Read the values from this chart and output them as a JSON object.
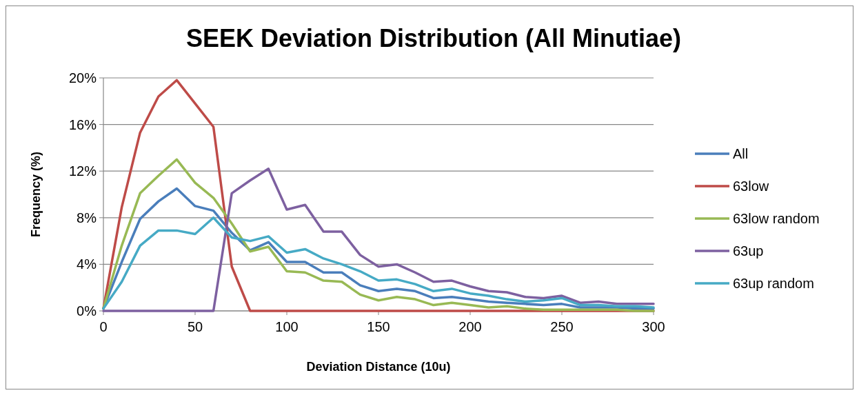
{
  "chart_data": {
    "type": "line",
    "title": "SEEK Deviation Distribution (All Minutiae)",
    "xlabel": "Deviation Distance (10u)",
    "ylabel": "Frequency (%)",
    "x": [
      0,
      10,
      20,
      30,
      40,
      50,
      60,
      70,
      80,
      90,
      100,
      110,
      120,
      130,
      140,
      150,
      160,
      170,
      180,
      190,
      200,
      210,
      220,
      230,
      240,
      250,
      260,
      270,
      280,
      290,
      300
    ],
    "xlim": [
      0,
      300
    ],
    "xticks": [
      0,
      50,
      100,
      150,
      200,
      250,
      300
    ],
    "ylim": [
      0,
      20
    ],
    "yticks": [
      {
        "value": 0,
        "label": "0%"
      },
      {
        "value": 4,
        "label": "4%"
      },
      {
        "value": 8,
        "label": "8%"
      },
      {
        "value": 12,
        "label": "12%"
      },
      {
        "value": 16,
        "label": "16%"
      },
      {
        "value": 20,
        "label": "20%"
      }
    ],
    "grid": "y",
    "legend": "right",
    "marker": "none",
    "line_style": "solid",
    "series": [
      {
        "name": "All",
        "color": "#4a7ebb",
        "values": [
          0.2,
          4.2,
          7.9,
          9.4,
          10.5,
          9.0,
          8.6,
          6.7,
          5.2,
          5.9,
          4.2,
          4.2,
          3.3,
          3.3,
          2.2,
          1.7,
          1.9,
          1.7,
          1.1,
          1.2,
          1.0,
          0.8,
          0.7,
          0.6,
          0.5,
          0.6,
          0.3,
          0.3,
          0.3,
          0.2,
          0.2
        ]
      },
      {
        "name": "63low",
        "color": "#be4b48",
        "values": [
          0.2,
          8.9,
          15.3,
          18.4,
          19.8,
          17.8,
          15.8,
          3.8,
          0,
          0,
          0,
          0,
          0,
          0,
          0,
          0,
          0,
          0,
          0,
          0,
          0,
          0,
          0,
          0,
          0,
          0,
          0,
          0,
          0,
          0,
          0
        ]
      },
      {
        "name": "63low random",
        "color": "#98b954",
        "values": [
          0.2,
          5.6,
          10.1,
          11.6,
          13.0,
          11.0,
          9.7,
          7.5,
          5.1,
          5.5,
          3.4,
          3.3,
          2.6,
          2.5,
          1.4,
          0.9,
          1.2,
          1.0,
          0.5,
          0.7,
          0.5,
          0.3,
          0.4,
          0.2,
          0.1,
          0.1,
          0.1,
          0.1,
          0.1,
          0,
          0
        ]
      },
      {
        "name": "63up",
        "color": "#7d60a0",
        "values": [
          0,
          0,
          0,
          0,
          0,
          0,
          0,
          10.1,
          11.2,
          12.2,
          8.7,
          9.1,
          6.8,
          6.8,
          4.8,
          3.8,
          4.0,
          3.3,
          2.5,
          2.6,
          2.1,
          1.7,
          1.6,
          1.2,
          1.1,
          1.3,
          0.7,
          0.8,
          0.6,
          0.6,
          0.6
        ]
      },
      {
        "name": "63up random",
        "color": "#46aac5",
        "values": [
          0.2,
          2.5,
          5.6,
          6.9,
          6.9,
          6.6,
          8.0,
          6.3,
          6.0,
          6.4,
          5.0,
          5.3,
          4.5,
          4.0,
          3.4,
          2.6,
          2.7,
          2.3,
          1.7,
          1.9,
          1.5,
          1.3,
          1.0,
          0.8,
          0.9,
          1.1,
          0.5,
          0.5,
          0.4,
          0.4,
          0.3
        ]
      }
    ]
  }
}
